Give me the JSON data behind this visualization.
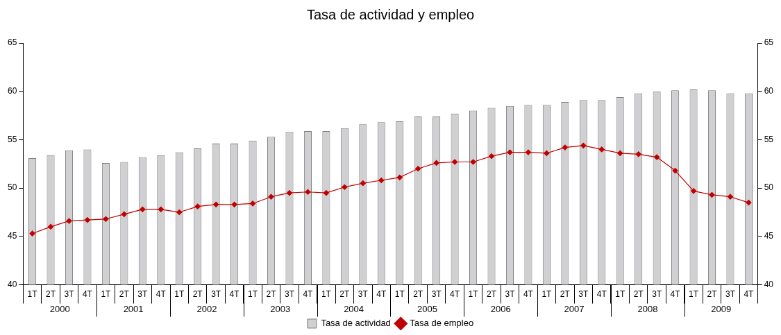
{
  "chart_data": {
    "type": "bar",
    "title": "Tasa de actividad y empleo",
    "categories": [
      "1T",
      "2T",
      "3T",
      "4T",
      "1T",
      "2T",
      "3T",
      "4T",
      "1T",
      "2T",
      "3T",
      "4T",
      "1T",
      "2T",
      "3T",
      "4T",
      "1T",
      "2T",
      "3T",
      "4T",
      "1T",
      "2T",
      "3T",
      "4T",
      "1T",
      "2T",
      "3T",
      "4T",
      "1T",
      "2T",
      "3T",
      "4T",
      "1T",
      "2T",
      "3T",
      "4T",
      "1T",
      "2T",
      "3T",
      "4T"
    ],
    "series": [
      {
        "name": "Tasa de actividad",
        "color": "#d0d0d2",
        "values": [
          53.1,
          53.4,
          53.9,
          54.0,
          52.6,
          52.7,
          53.2,
          53.4,
          53.7,
          54.1,
          54.6,
          54.6,
          54.9,
          55.3,
          55.8,
          55.9,
          55.9,
          56.2,
          56.6,
          56.8,
          56.9,
          57.4,
          57.4,
          57.7,
          58.0,
          58.3,
          58.5,
          58.6,
          58.6,
          58.9,
          59.1,
          59.1,
          59.4,
          59.8,
          60.0,
          60.1,
          60.2,
          60.1,
          59.8,
          59.8
        ]
      },
      {
        "name": "Tasa de empleo",
        "type": "line",
        "color": "#c00000",
        "marker": "diamond",
        "values": [
          45.3,
          46.0,
          46.6,
          46.7,
          46.8,
          47.3,
          47.8,
          47.8,
          47.5,
          48.1,
          48.3,
          48.3,
          48.4,
          49.1,
          49.5,
          49.6,
          49.5,
          50.1,
          50.5,
          50.8,
          51.1,
          52.0,
          52.6,
          52.7,
          52.7,
          53.3,
          53.7,
          53.7,
          53.6,
          54.2,
          54.4,
          54.0,
          53.6,
          53.5,
          53.2,
          51.8,
          49.7,
          49.3,
          49.1,
          48.5
        ]
      }
    ],
    "annotations": [
      "2000",
      "2001",
      "2002",
      "2003",
      "2004",
      "2005",
      "2006",
      "2007",
      "2008",
      "2009"
    ],
    "ylim": [
      40,
      65
    ],
    "yticks": [
      40,
      45,
      50,
      55,
      60,
      65
    ],
    "y2lim": [
      40,
      65
    ],
    "y2ticks": [
      40,
      45,
      50,
      55,
      60,
      65
    ],
    "grid": false,
    "legend": "bottom"
  }
}
